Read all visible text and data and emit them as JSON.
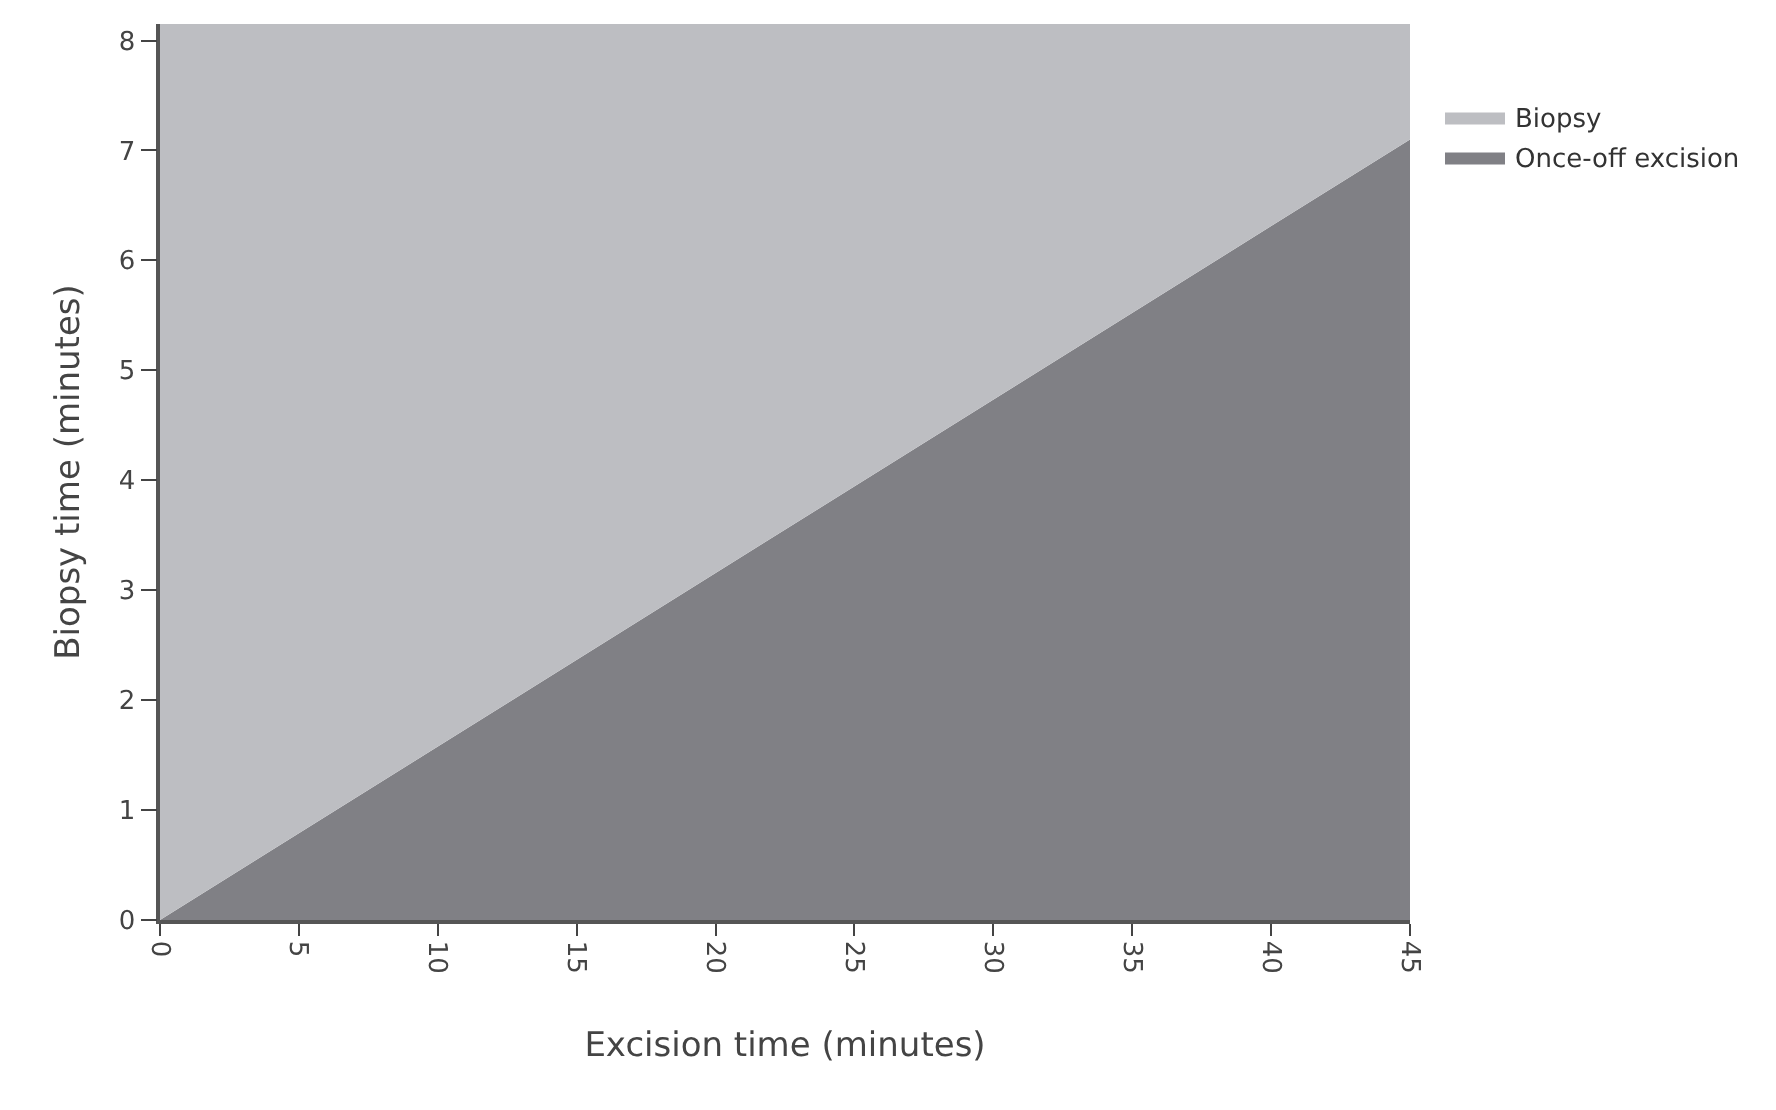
{
  "chart_data": {
    "type": "area",
    "stacked": true,
    "xlabel": "Excision time (minutes)",
    "ylabel": "Biopsy time (minutes)",
    "x": [
      0,
      45
    ],
    "series": [
      {
        "name": "Once-off excision",
        "color": "#808085",
        "values": [
          0,
          7.1
        ]
      },
      {
        "name": "Biopsy",
        "color": "#bdbec2",
        "values": [
          8.15,
          1.05
        ]
      }
    ],
    "xlim": [
      0,
      45
    ],
    "xticks": [
      0,
      5,
      10,
      15,
      20,
      25,
      30,
      35,
      40,
      45
    ],
    "ylim": [
      0,
      8.15
    ],
    "yticks": [
      0,
      1,
      2,
      3,
      4,
      5,
      6,
      7,
      8
    ],
    "legend": "top right"
  }
}
